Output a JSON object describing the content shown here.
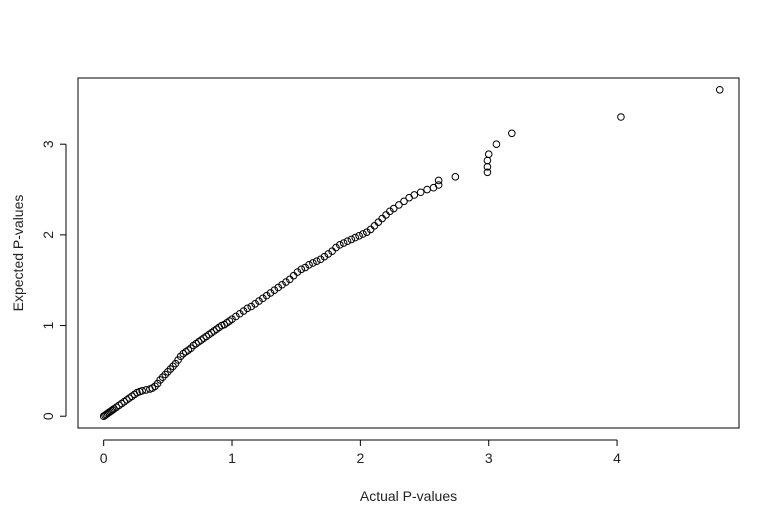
{
  "chart_data": {
    "type": "scatter",
    "title": "",
    "xlabel": "Actual P-values",
    "ylabel": "Expected P-values",
    "xlim": [
      -0.2,
      4.95
    ],
    "ylim": [
      -0.13,
      3.73
    ],
    "xticks": [
      0,
      1,
      2,
      3,
      4
    ],
    "yticks": [
      0,
      1,
      2,
      3
    ],
    "x_tick_labels": [
      "0",
      "1",
      "2",
      "3",
      "4"
    ],
    "y_tick_labels": [
      "0",
      "1",
      "2",
      "3"
    ],
    "grid": false,
    "legend": "none",
    "marker": "open-circle",
    "marker_color": "#000000",
    "points": [
      [
        0.0,
        0.0
      ],
      [
        0.01,
        0.01
      ],
      [
        0.02,
        0.02
      ],
      [
        0.03,
        0.03
      ],
      [
        0.04,
        0.04
      ],
      [
        0.05,
        0.05
      ],
      [
        0.06,
        0.06
      ],
      [
        0.07,
        0.07
      ],
      [
        0.08,
        0.08
      ],
      [
        0.1,
        0.1
      ],
      [
        0.12,
        0.12
      ],
      [
        0.14,
        0.14
      ],
      [
        0.16,
        0.16
      ],
      [
        0.18,
        0.18
      ],
      [
        0.2,
        0.2
      ],
      [
        0.22,
        0.22
      ],
      [
        0.24,
        0.24
      ],
      [
        0.26,
        0.26
      ],
      [
        0.28,
        0.27
      ],
      [
        0.3,
        0.28
      ],
      [
        0.33,
        0.29
      ],
      [
        0.36,
        0.3
      ],
      [
        0.38,
        0.31
      ],
      [
        0.4,
        0.33
      ],
      [
        0.42,
        0.36
      ],
      [
        0.44,
        0.4
      ],
      [
        0.46,
        0.43
      ],
      [
        0.48,
        0.46
      ],
      [
        0.5,
        0.49
      ],
      [
        0.52,
        0.52
      ],
      [
        0.54,
        0.55
      ],
      [
        0.56,
        0.58
      ],
      [
        0.58,
        0.62
      ],
      [
        0.6,
        0.66
      ],
      [
        0.62,
        0.69
      ],
      [
        0.64,
        0.71
      ],
      [
        0.66,
        0.73
      ],
      [
        0.68,
        0.75
      ],
      [
        0.7,
        0.78
      ],
      [
        0.72,
        0.8
      ],
      [
        0.74,
        0.82
      ],
      [
        0.76,
        0.84
      ],
      [
        0.78,
        0.86
      ],
      [
        0.8,
        0.88
      ],
      [
        0.82,
        0.9
      ],
      [
        0.84,
        0.92
      ],
      [
        0.86,
        0.94
      ],
      [
        0.88,
        0.96
      ],
      [
        0.9,
        0.98
      ],
      [
        0.92,
        1.0
      ],
      [
        0.94,
        1.01
      ],
      [
        0.96,
        1.03
      ],
      [
        0.98,
        1.05
      ],
      [
        1.0,
        1.07
      ],
      [
        1.03,
        1.1
      ],
      [
        1.06,
        1.13
      ],
      [
        1.09,
        1.16
      ],
      [
        1.12,
        1.19
      ],
      [
        1.15,
        1.21
      ],
      [
        1.18,
        1.24
      ],
      [
        1.21,
        1.27
      ],
      [
        1.24,
        1.3
      ],
      [
        1.27,
        1.33
      ],
      [
        1.3,
        1.36
      ],
      [
        1.33,
        1.39
      ],
      [
        1.36,
        1.42
      ],
      [
        1.39,
        1.45
      ],
      [
        1.42,
        1.48
      ],
      [
        1.45,
        1.51
      ],
      [
        1.48,
        1.55
      ],
      [
        1.51,
        1.59
      ],
      [
        1.54,
        1.62
      ],
      [
        1.57,
        1.64
      ],
      [
        1.6,
        1.67
      ],
      [
        1.63,
        1.69
      ],
      [
        1.66,
        1.71
      ],
      [
        1.69,
        1.73
      ],
      [
        1.72,
        1.76
      ],
      [
        1.75,
        1.79
      ],
      [
        1.78,
        1.82
      ],
      [
        1.81,
        1.86
      ],
      [
        1.84,
        1.89
      ],
      [
        1.87,
        1.91
      ],
      [
        1.9,
        1.93
      ],
      [
        1.93,
        1.95
      ],
      [
        1.96,
        1.97
      ],
      [
        1.99,
        1.99
      ],
      [
        2.02,
        2.01
      ],
      [
        2.05,
        2.03
      ],
      [
        2.08,
        2.06
      ],
      [
        2.11,
        2.1
      ],
      [
        2.14,
        2.14
      ],
      [
        2.17,
        2.18
      ],
      [
        2.2,
        2.22
      ],
      [
        2.23,
        2.26
      ],
      [
        2.26,
        2.29
      ],
      [
        2.3,
        2.33
      ],
      [
        2.34,
        2.37
      ],
      [
        2.38,
        2.41
      ],
      [
        2.42,
        2.44
      ],
      [
        2.47,
        2.47
      ],
      [
        2.52,
        2.5
      ],
      [
        2.57,
        2.52
      ],
      [
        2.61,
        2.55
      ],
      [
        2.61,
        2.6
      ],
      [
        2.74,
        2.64
      ],
      [
        2.99,
        2.69
      ],
      [
        2.99,
        2.75
      ],
      [
        2.99,
        2.82
      ],
      [
        3.0,
        2.89
      ],
      [
        3.06,
        3.0
      ],
      [
        3.18,
        3.12
      ],
      [
        4.03,
        3.3
      ],
      [
        4.8,
        3.6
      ]
    ]
  }
}
